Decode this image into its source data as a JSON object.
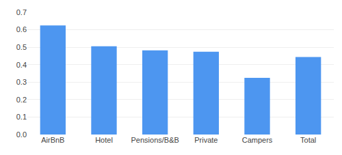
{
  "chart_data": {
    "type": "bar",
    "categories": [
      "AirBnB",
      "Hotel",
      "Pensions/B&B",
      "Private",
      "Campers",
      "Total"
    ],
    "values": [
      0.625,
      0.505,
      0.482,
      0.474,
      0.325,
      0.444
    ],
    "color": "#4d96f0",
    "ylim": [
      0.0,
      0.7
    ],
    "yticks": [
      {
        "value": 0,
        "label": "0.0"
      },
      0.1,
      0.2,
      0.3,
      0.4,
      0.5,
      0.6,
      0.7
    ],
    "grid": true
  }
}
